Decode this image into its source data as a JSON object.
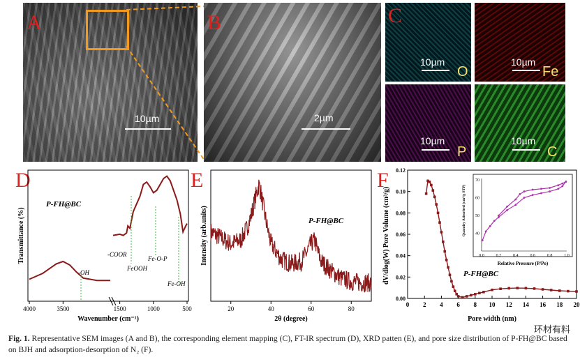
{
  "panels": {
    "A": {
      "label": "A",
      "scale": "10µm"
    },
    "B": {
      "label": "B",
      "scale": "2µm"
    },
    "C": {
      "label": "C",
      "maps": [
        {
          "element": "O",
          "scale": "10µm",
          "color": "#2fc7cf"
        },
        {
          "element": "Fe",
          "scale": "10µm",
          "color": "#e01818"
        },
        {
          "element": "P",
          "scale": "10µm",
          "color": "#b030b0"
        },
        {
          "element": "C",
          "scale": "10µm",
          "color": "#3bd43b"
        }
      ]
    },
    "D": {
      "label": "D"
    },
    "E": {
      "label": "E"
    },
    "F": {
      "label": "F"
    }
  },
  "chart_data": [
    {
      "type": "line",
      "panel": "D",
      "title": "",
      "sample_label": "P-FH@BC",
      "xlabel": "Wavenumber (cm⁻¹)",
      "ylabel": "Transmittance (%)",
      "x_ticks": [
        "4000",
        "3500",
        "1500",
        "1000",
        "500"
      ],
      "annotations": [
        "-OH",
        "-COOR",
        "FeOOH",
        "Fe-O-P",
        "Fe-OH"
      ],
      "color": "#8b1a1a",
      "segments": [
        {
          "x": [
            4000,
            3800,
            3600,
            3500,
            3400,
            3300,
            3200,
            3000,
            2800
          ],
          "y": [
            0.15,
            0.2,
            0.28,
            0.3,
            0.27,
            0.21,
            0.16,
            0.14,
            0.14
          ]
        },
        {
          "x": [
            1600,
            1500,
            1450,
            1400,
            1380,
            1350,
            1300,
            1200,
            1150,
            1100,
            1050,
            1000,
            950,
            900,
            850,
            800,
            750,
            700,
            650,
            600,
            560,
            520,
            500
          ],
          "y": [
            0.52,
            0.53,
            0.52,
            0.54,
            0.6,
            0.58,
            0.72,
            0.85,
            0.95,
            0.97,
            0.93,
            0.88,
            0.9,
            0.95,
            1.0,
            1.02,
            0.98,
            0.9,
            0.82,
            0.7,
            0.55,
            0.6,
            0.62
          ]
        }
      ]
    },
    {
      "type": "line",
      "panel": "E",
      "title": "",
      "sample_label": "P-FH@BC",
      "xlabel": "2θ (degree)",
      "ylabel": "Intensity (arb.units)",
      "x_ticks": [
        20,
        40,
        60,
        80
      ],
      "xlim": [
        10,
        90
      ],
      "color": "#8b1a1a",
      "x": [
        10,
        15,
        20,
        25,
        28,
        30,
        32,
        34,
        35,
        36,
        38,
        40,
        45,
        50,
        55,
        58,
        60,
        62,
        63,
        65,
        70,
        75,
        80,
        85,
        90
      ],
      "y": [
        0.55,
        0.5,
        0.45,
        0.48,
        0.58,
        0.68,
        0.82,
        0.95,
        0.88,
        0.78,
        0.6,
        0.45,
        0.32,
        0.28,
        0.3,
        0.38,
        0.45,
        0.48,
        0.4,
        0.3,
        0.22,
        0.16,
        0.13,
        0.12,
        0.12
      ]
    },
    {
      "type": "line",
      "panel": "F",
      "title": "",
      "sample_label": "P-FH@BC",
      "xlabel": "Pore width (nm)",
      "ylabel": "dV/dlog(W) Pore Volume (cm³/g)",
      "xlim": [
        0,
        20
      ],
      "ylim": [
        0,
        0.12
      ],
      "x_ticks": [
        0,
        2,
        4,
        6,
        8,
        10,
        12,
        14,
        16,
        18,
        20
      ],
      "y_ticks": [
        "0.00",
        "0.02",
        "0.04",
        "0.06",
        "0.08",
        "0.10",
        "0.12"
      ],
      "color": "#8b1a1a",
      "x": [
        2.2,
        2.4,
        2.6,
        2.8,
        3.0,
        3.2,
        3.4,
        3.6,
        3.8,
        4.0,
        4.2,
        4.4,
        4.6,
        4.8,
        5.0,
        5.2,
        5.4,
        5.6,
        5.8,
        6.0,
        6.5,
        7,
        7.5,
        8,
        8.5,
        9,
        10,
        11,
        12,
        13,
        14,
        15,
        16,
        17,
        18,
        19,
        20
      ],
      "y": [
        0.098,
        0.11,
        0.109,
        0.106,
        0.101,
        0.095,
        0.088,
        0.08,
        0.071,
        0.062,
        0.053,
        0.044,
        0.036,
        0.029,
        0.022,
        0.016,
        0.011,
        0.007,
        0.004,
        0.002,
        0.001,
        0.002,
        0.003,
        0.004,
        0.005,
        0.006,
        0.008,
        0.009,
        0.0095,
        0.0097,
        0.0096,
        0.0092,
        0.0085,
        0.0078,
        0.0072,
        0.0068,
        0.0065
      ],
      "inset": {
        "type": "line",
        "xlabel": "Relative Pressure (P/Po)",
        "ylabel": "Quantity Adsorbed (cm³/g STP)",
        "xlim": [
          0,
          1.0
        ],
        "ylim": [
          30,
          70
        ],
        "x_ticks": [
          "0.0",
          "0.2",
          "0.4",
          "0.6",
          "0.8",
          "1.0"
        ],
        "y_ticks": [
          "40",
          "50",
          "60",
          "70"
        ],
        "color": "#b030b0",
        "series": [
          {
            "x": [
              0.01,
              0.05,
              0.1,
              0.15,
              0.2,
              0.3,
              0.4,
              0.5,
              0.6,
              0.7,
              0.8,
              0.9,
              0.95,
              0.99
            ],
            "y": [
              36,
              41,
              44,
              47,
              49,
              53,
              56,
              60,
              61.5,
              62.5,
              63.5,
              65,
              66.5,
              69
            ]
          },
          {
            "x": [
              0.99,
              0.95,
              0.9,
              0.8,
              0.7,
              0.6,
              0.5,
              0.45,
              0.4,
              0.3,
              0.2
            ],
            "y": [
              69,
              68,
              67,
              65.5,
              65,
              64.5,
              63.5,
              62,
              59,
              55,
              50
            ]
          }
        ]
      }
    }
  ],
  "caption": {
    "fig": "Fig. 1.",
    "text": "Representative SEM images (A and B), the corresponding element mapping (C), FT-IR spectrum (D), XRD patten (E), and pore size distribution of P-FH@BC based on BJH and adsorption-desorption of N₂ (F)."
  },
  "watermark": "环材有料"
}
